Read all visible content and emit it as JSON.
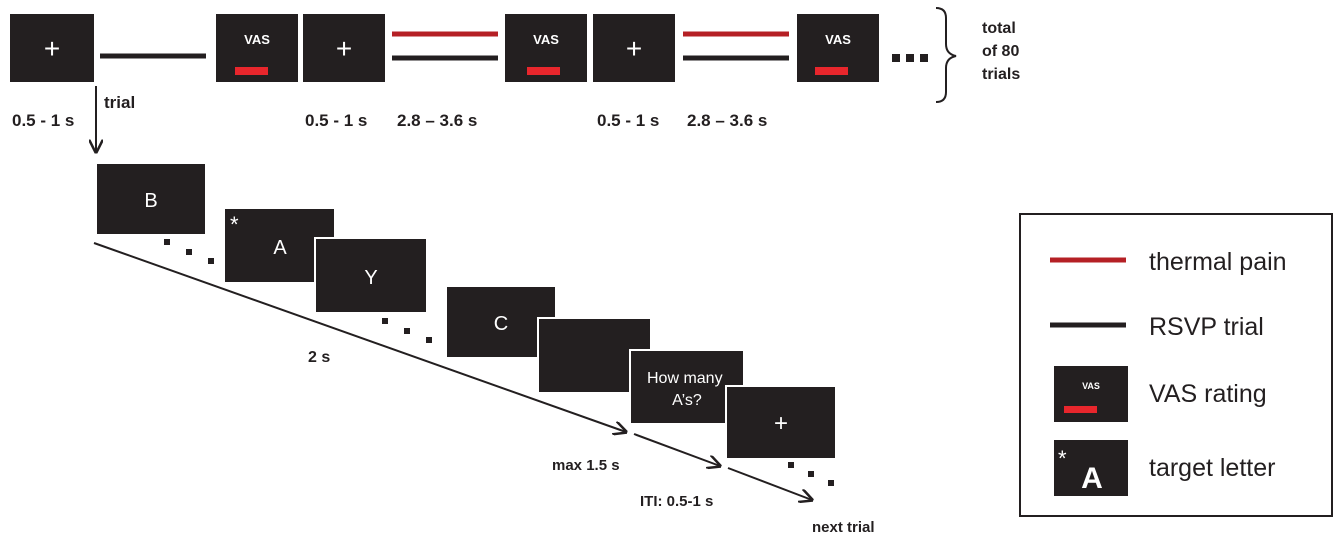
{
  "colors": {
    "box": "#231f20",
    "thermal": "#b52025",
    "vas_bar": "#e8262c",
    "line": "#231f20",
    "text": "#231f20"
  },
  "top_row": {
    "fixation_symbol": "+",
    "vas_label": "VAS",
    "ellipsis": "▪ ▪ ▪",
    "duration_fixation_first": "0.5 - 1 s",
    "duration_fixation": "0.5 - 1 s",
    "duration_stimulus": "2.8 – 3.6 s",
    "trial_label": "trial",
    "total_line1": "total",
    "total_line2": "of 80",
    "total_line3": "trials"
  },
  "rsvp": {
    "letters": [
      "B",
      "A",
      "Y",
      "C"
    ],
    "target_marker": "*",
    "question_line1": "How many",
    "question_line2": "A’s?",
    "fixation_symbol": "+",
    "duration_stream": "2 s",
    "duration_response": "max 1.5 s",
    "duration_iti": "ITI: 0.5-1 s",
    "next_label": "next trial"
  },
  "legend": {
    "thermal_label": "thermal pain",
    "rsvp_label": "RSVP trial",
    "vas_label": "VAS rating",
    "vas_icon_text": "VAS",
    "target_label": "target letter",
    "target_icon_letter": "A",
    "target_icon_marker": "*"
  }
}
